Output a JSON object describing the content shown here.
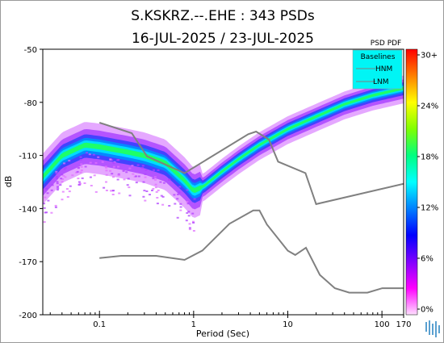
{
  "chart_data": {
    "type": "heatmap",
    "title_line1": "S.KSKRZ.--.EHE : 343 PSDs",
    "title_line2": "16-JUL-2025 / 23-JUL-2025",
    "xlabel": "Period (Sec)",
    "ylabel": "dB",
    "x_scale": "log",
    "xlim": [
      0.025,
      170
    ],
    "ylim": [
      -200,
      -50
    ],
    "x_ticks": [
      {
        "value": 0.1,
        "label": "0.1"
      },
      {
        "value": 1,
        "label": "1"
      },
      {
        "value": 10,
        "label": "10"
      },
      {
        "value": 100,
        "label": "100"
      },
      {
        "value": 170,
        "label": "170"
      }
    ],
    "y_ticks": [
      {
        "value": -50,
        "label": "-50"
      },
      {
        "value": -80,
        "label": "-80"
      },
      {
        "value": -110,
        "label": "-110"
      },
      {
        "value": -140,
        "label": "-140"
      },
      {
        "value": -170,
        "label": "-170"
      },
      {
        "value": -200,
        "label": "-200"
      }
    ],
    "colorbar": {
      "title": "PSD PDF",
      "tick_labels": [
        "30+",
        "24%",
        "18%",
        "12%",
        "6%",
        "0%"
      ],
      "stops": [
        "#ff0000",
        "#ff8000",
        "#ffff00",
        "#80ff00",
        "#00ff80",
        "#00ffff",
        "#0080ff",
        "#0000ff",
        "#8000ff",
        "#ff00ff",
        "#ffe0ff"
      ]
    },
    "legend": {
      "title": "Baselines",
      "placement": "top-right",
      "entries": [
        "HNM",
        "LNM"
      ]
    },
    "series": [
      {
        "name": "HNM",
        "color": "#808080",
        "points": [
          [
            0.1,
            -91.5
          ],
          [
            0.22,
            -97.4
          ],
          [
            0.32,
            -110.5
          ],
          [
            0.8,
            -120
          ],
          [
            3.8,
            -98
          ],
          [
            4.6,
            -96.5
          ],
          [
            6.3,
            -101
          ],
          [
            7.9,
            -113.5
          ],
          [
            15.4,
            -120
          ],
          [
            20,
            -137.5
          ],
          [
            170,
            -126
          ]
        ]
      },
      {
        "name": "LNM",
        "color": "#808080",
        "points": [
          [
            0.1,
            -168
          ],
          [
            0.17,
            -166.7
          ],
          [
            0.4,
            -166.7
          ],
          [
            0.8,
            -169
          ],
          [
            1.24,
            -163.7
          ],
          [
            2.4,
            -148.6
          ],
          [
            4.3,
            -141.1
          ],
          [
            5,
            -141.1
          ],
          [
            6,
            -149
          ],
          [
            10,
            -163.8
          ],
          [
            12,
            -166.2
          ],
          [
            15.6,
            -162.1
          ],
          [
            21.9,
            -177.5
          ],
          [
            31.6,
            -185
          ],
          [
            45,
            -187.5
          ],
          [
            70,
            -187.5
          ],
          [
            101,
            -185
          ],
          [
            170,
            -185
          ]
        ]
      },
      {
        "name": "",
        "role": "density-ridge",
        "points": [
          [
            0.025,
            -122
          ],
          [
            0.04,
            -110
          ],
          [
            0.07,
            -104
          ],
          [
            0.1,
            -105
          ],
          [
            0.2,
            -108
          ],
          [
            0.3,
            -110
          ],
          [
            0.5,
            -114
          ],
          [
            0.8,
            -124
          ],
          [
            1,
            -130
          ],
          [
            1.3,
            -127
          ],
          [
            2,
            -119
          ],
          [
            3,
            -112
          ],
          [
            5,
            -104
          ],
          [
            10,
            -95
          ],
          [
            20,
            -88
          ],
          [
            40,
            -81
          ],
          [
            80,
            -76
          ],
          [
            170,
            -72
          ]
        ]
      }
    ]
  }
}
